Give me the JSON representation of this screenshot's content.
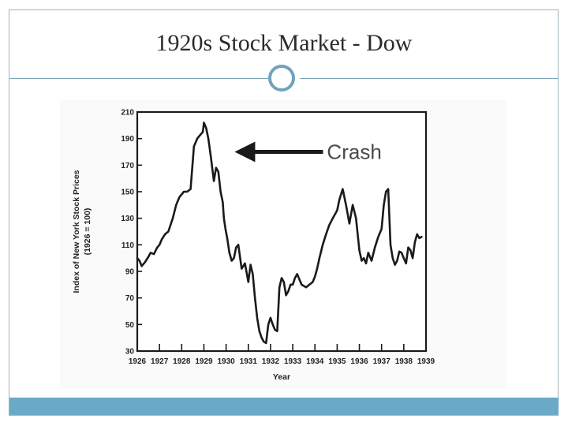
{
  "slide": {
    "title": "1920s Stock Market - Dow"
  },
  "colors": {
    "accent": "#6aaac7",
    "ring": "#6fa3bd",
    "line": "#1a1a1a"
  },
  "chart_data": {
    "type": "line",
    "title": "",
    "xlabel": "Year",
    "ylabel": "Index of New York Stock Prices",
    "ylabel_sub": "(1926 = 100)",
    "xlim": [
      1926,
      1939
    ],
    "ylim": [
      30,
      210
    ],
    "x_ticks": [
      "1926",
      "1927",
      "1928",
      "1929",
      "1930",
      "1931",
      "1932",
      "1933",
      "1934",
      "1935",
      "1936",
      "1937",
      "1938",
      "1939"
    ],
    "y_ticks": [
      "30",
      "50",
      "70",
      "90",
      "110",
      "130",
      "150",
      "170",
      "190",
      "210"
    ],
    "grid": false,
    "annotation": {
      "text": "Crash",
      "x": 1930.1,
      "y": 180
    },
    "series": [
      {
        "x": [
          1926.0,
          1926.1,
          1926.2,
          1926.35,
          1926.5,
          1926.6,
          1926.75,
          1926.9,
          1927.0,
          1927.1,
          1927.25,
          1927.4,
          1927.6,
          1927.75,
          1927.9,
          1928.0,
          1928.1,
          1928.25,
          1928.4,
          1928.55,
          1928.7,
          1928.8,
          1928.95,
          1929.0,
          1929.1,
          1929.2,
          1929.3,
          1929.45,
          1929.55,
          1929.65,
          1929.75,
          1929.85,
          1929.9,
          1929.97,
          1930.05,
          1930.15,
          1930.25,
          1930.35,
          1930.45,
          1930.55,
          1930.7,
          1930.85,
          1931.0,
          1931.1,
          1931.2,
          1931.3,
          1931.4,
          1931.5,
          1931.6,
          1931.7,
          1931.8,
          1931.9,
          1932.0,
          1932.1,
          1932.2,
          1932.3,
          1932.4,
          1932.5,
          1932.6,
          1932.7,
          1932.8,
          1932.9,
          1933.0,
          1933.1,
          1933.2,
          1933.3,
          1933.4,
          1933.5,
          1933.6,
          1933.75,
          1933.9,
          1934.0,
          1934.1,
          1934.2,
          1934.35,
          1934.5,
          1934.65,
          1934.8,
          1935.0,
          1935.1,
          1935.25,
          1935.4,
          1935.55,
          1935.7,
          1935.85,
          1936.0,
          1936.1,
          1936.2,
          1936.3,
          1936.4,
          1936.55,
          1936.7,
          1936.85,
          1937.0,
          1937.1,
          1937.2,
          1937.3,
          1937.4,
          1937.5,
          1937.6,
          1937.7,
          1937.8,
          1937.9,
          1938.0,
          1938.1,
          1938.2,
          1938.3,
          1938.4,
          1938.5,
          1938.6,
          1938.7,
          1938.8
        ],
        "y": [
          100,
          98,
          94,
          97,
          101,
          104,
          103,
          108,
          110,
          114,
          118,
          120,
          130,
          140,
          146,
          148,
          150,
          150,
          152,
          184,
          190,
          192,
          195,
          202,
          198,
          190,
          178,
          158,
          168,
          165,
          150,
          142,
          130,
          122,
          115,
          104,
          98,
          100,
          108,
          110,
          92,
          96,
          82,
          95,
          88,
          70,
          55,
          45,
          40,
          37,
          36,
          50,
          55,
          50,
          46,
          45,
          78,
          85,
          82,
          72,
          75,
          80,
          80,
          85,
          88,
          84,
          80,
          79,
          78,
          80,
          82,
          86,
          92,
          100,
          110,
          118,
          125,
          130,
          136,
          144,
          152,
          140,
          126,
          140,
          130,
          106,
          98,
          100,
          96,
          104,
          98,
          108,
          116,
          122,
          140,
          150,
          152,
          110,
          100,
          95,
          98,
          105,
          104,
          100,
          96,
          108,
          106,
          100,
          112,
          118,
          115,
          116
        ]
      }
    ]
  }
}
